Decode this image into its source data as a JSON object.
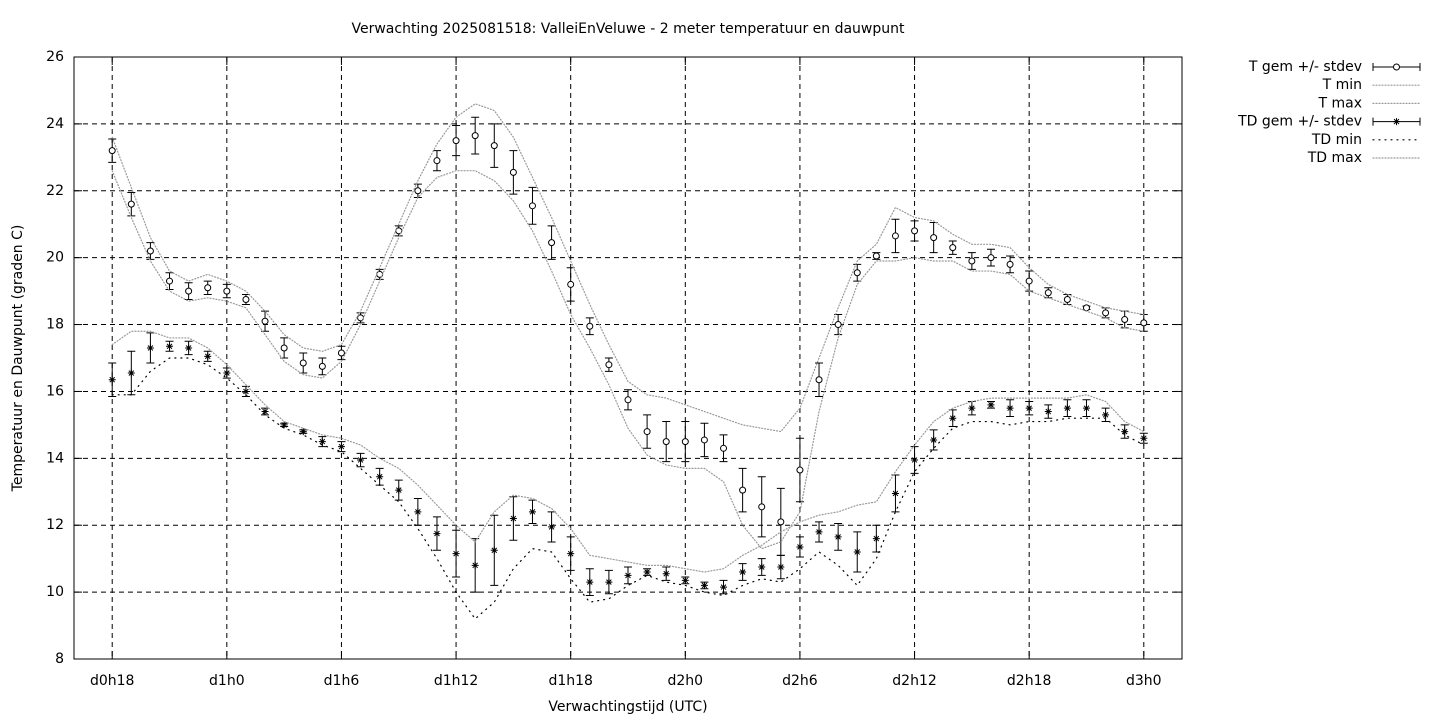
{
  "chart_data": {
    "type": "errorbar-line",
    "title": "Verwachting 2025081518: ValleiEnVeluwe - 2 meter temperatuur en dauwpunt",
    "xlabel": "Verwachtingstijd (UTC)",
    "ylabel": "Temperatuur en Dauwpunt (graden C)",
    "x": [
      18,
      19,
      20,
      21,
      22,
      23,
      24,
      25,
      26,
      27,
      28,
      29,
      30,
      31,
      32,
      33,
      34,
      35,
      36,
      37,
      38,
      39,
      40,
      41,
      42,
      43,
      44,
      45,
      46,
      47,
      48,
      49,
      50,
      51,
      52,
      53,
      54,
      55,
      56,
      57,
      58,
      59,
      60,
      61,
      62,
      63,
      64,
      65,
      66,
      67,
      68,
      69,
      70,
      71,
      72
    ],
    "xlim": [
      16,
      74
    ],
    "xticks": [
      {
        "value": 18,
        "label": "d0h18"
      },
      {
        "value": 24,
        "label": "d1h0"
      },
      {
        "value": 30,
        "label": "d1h6"
      },
      {
        "value": 36,
        "label": "d1h12"
      },
      {
        "value": 42,
        "label": "d1h18"
      },
      {
        "value": 48,
        "label": "d2h0"
      },
      {
        "value": 54,
        "label": "d2h6"
      },
      {
        "value": 60,
        "label": "d2h12"
      },
      {
        "value": 66,
        "label": "d2h18"
      },
      {
        "value": 72,
        "label": "d3h0"
      }
    ],
    "ylim": [
      8,
      26
    ],
    "yticks": [
      8,
      10,
      12,
      14,
      16,
      18,
      20,
      22,
      24,
      26
    ],
    "grid": true,
    "legend": "outside-right",
    "series": [
      {
        "name": "T gem +/- stdev",
        "style": "errorbars",
        "marker": "circle",
        "color": "#000000",
        "values": [
          23.2,
          21.6,
          20.2,
          19.3,
          19.0,
          19.1,
          19.0,
          18.75,
          18.1,
          17.3,
          16.85,
          16.75,
          17.15,
          18.2,
          19.5,
          20.8,
          22.0,
          22.9,
          23.5,
          23.65,
          23.35,
          22.55,
          21.55,
          20.45,
          19.2,
          17.95,
          16.8,
          15.75,
          14.8,
          14.5,
          14.5,
          14.55,
          14.3,
          13.05,
          12.55,
          12.1,
          13.65,
          16.35,
          18.0,
          19.55,
          20.05,
          20.65,
          20.8,
          20.6,
          20.3,
          19.9,
          20.0,
          19.8,
          19.3,
          18.95,
          18.75,
          18.5,
          18.35,
          18.15,
          18.05
        ],
        "errors": [
          0.35,
          0.35,
          0.25,
          0.25,
          0.25,
          0.2,
          0.2,
          0.15,
          0.3,
          0.3,
          0.3,
          0.25,
          0.2,
          0.15,
          0.15,
          0.15,
          0.2,
          0.3,
          0.45,
          0.55,
          0.65,
          0.65,
          0.55,
          0.5,
          0.5,
          0.25,
          0.2,
          0.3,
          0.5,
          0.6,
          0.6,
          0.5,
          0.4,
          0.65,
          0.9,
          1.0,
          0.95,
          0.5,
          0.3,
          0.25,
          0.1,
          0.5,
          0.3,
          0.45,
          0.2,
          0.25,
          0.25,
          0.25,
          0.3,
          0.15,
          0.15,
          0.05,
          0.15,
          0.25,
          0.25
        ]
      },
      {
        "name": "T min",
        "style": "line",
        "dash": "1 2",
        "color": "#999999",
        "values": [
          22.6,
          21.2,
          19.9,
          19.0,
          18.7,
          18.8,
          18.7,
          18.5,
          17.7,
          16.9,
          16.5,
          16.4,
          16.9,
          18.0,
          19.3,
          20.6,
          21.8,
          22.4,
          22.6,
          22.6,
          22.3,
          21.7,
          20.8,
          19.6,
          18.3,
          17.3,
          16.2,
          14.9,
          14.1,
          13.8,
          13.7,
          13.7,
          13.3,
          12.0,
          11.3,
          11.5,
          12.4,
          15.4,
          17.6,
          19.2,
          19.9,
          19.9,
          20.0,
          19.9,
          19.9,
          19.6,
          19.6,
          19.5,
          19.0,
          18.8,
          18.6,
          18.4,
          18.2,
          17.9,
          17.8
        ]
      },
      {
        "name": "T max",
        "style": "line",
        "dash": "1 2",
        "color": "#999999",
        "values": [
          23.6,
          22.1,
          20.6,
          19.6,
          19.3,
          19.5,
          19.3,
          19.0,
          18.4,
          17.7,
          17.3,
          17.2,
          17.4,
          18.4,
          19.7,
          21.0,
          22.3,
          23.4,
          24.2,
          24.6,
          24.4,
          23.6,
          22.4,
          21.2,
          19.9,
          18.6,
          17.4,
          16.3,
          15.9,
          15.8,
          15.6,
          15.4,
          15.2,
          15.0,
          14.9,
          14.8,
          15.5,
          17.0,
          18.5,
          19.9,
          20.4,
          21.5,
          21.2,
          21.1,
          20.7,
          20.4,
          20.4,
          20.3,
          19.7,
          19.2,
          18.9,
          18.7,
          18.5,
          18.4,
          18.3
        ]
      },
      {
        "name": "TD gem +/- stdev",
        "style": "errorbars",
        "marker": "star",
        "color": "#000000",
        "values": [
          16.35,
          16.55,
          17.3,
          17.35,
          17.3,
          17.05,
          16.55,
          16.0,
          15.4,
          15.0,
          14.8,
          14.5,
          14.35,
          13.95,
          13.45,
          13.05,
          12.4,
          11.75,
          11.15,
          10.8,
          11.25,
          12.2,
          12.4,
          11.95,
          11.15,
          10.3,
          10.3,
          10.5,
          10.6,
          10.55,
          10.35,
          10.2,
          10.15,
          10.6,
          10.75,
          10.75,
          11.35,
          11.8,
          11.65,
          11.2,
          11.6,
          12.95,
          13.95,
          14.55,
          15.2,
          15.5,
          15.6,
          15.5,
          15.5,
          15.4,
          15.5,
          15.5,
          15.3,
          14.8,
          14.6
        ],
        "errors": [
          0.5,
          0.65,
          0.45,
          0.15,
          0.2,
          0.15,
          0.15,
          0.15,
          0.1,
          0.05,
          0.05,
          0.15,
          0.15,
          0.2,
          0.25,
          0.3,
          0.4,
          0.5,
          0.7,
          0.8,
          1.05,
          0.65,
          0.35,
          0.45,
          0.5,
          0.4,
          0.35,
          0.25,
          0.1,
          0.2,
          0.1,
          0.1,
          0.2,
          0.25,
          0.25,
          0.35,
          0.3,
          0.3,
          0.4,
          0.6,
          0.4,
          0.55,
          0.4,
          0.3,
          0.25,
          0.2,
          0.1,
          0.25,
          0.2,
          0.2,
          0.25,
          0.25,
          0.2,
          0.2,
          0.15
        ]
      },
      {
        "name": "TD min",
        "style": "line",
        "dash": "1 5",
        "color": "#000000",
        "values": [
          15.9,
          15.9,
          16.6,
          17.0,
          17.0,
          16.8,
          16.4,
          15.9,
          15.3,
          14.9,
          14.7,
          14.4,
          14.2,
          13.7,
          13.2,
          12.7,
          11.9,
          11.0,
          10.0,
          9.2,
          9.7,
          10.7,
          11.3,
          11.2,
          10.4,
          9.7,
          9.8,
          10.2,
          10.5,
          10.3,
          10.2,
          10.0,
          9.9,
          10.2,
          10.4,
          10.3,
          10.7,
          11.2,
          10.8,
          10.2,
          11.0,
          12.4,
          13.6,
          14.3,
          14.9,
          15.1,
          15.1,
          15.0,
          15.1,
          15.1,
          15.2,
          15.2,
          15.2,
          14.7,
          14.4
        ]
      },
      {
        "name": "TD max",
        "style": "line",
        "dash": "1 2",
        "color": "#999999",
        "values": [
          17.4,
          17.8,
          17.8,
          17.6,
          17.6,
          17.3,
          16.8,
          16.2,
          15.6,
          15.1,
          14.9,
          14.7,
          14.6,
          14.4,
          14.0,
          13.7,
          13.2,
          12.6,
          12.0,
          11.5,
          12.4,
          12.9,
          12.8,
          12.5,
          11.9,
          11.1,
          11.0,
          10.9,
          10.8,
          10.8,
          10.7,
          10.6,
          10.7,
          11.1,
          11.4,
          11.8,
          12.1,
          12.3,
          12.4,
          12.6,
          12.7,
          13.6,
          14.4,
          15.1,
          15.5,
          15.7,
          15.8,
          15.8,
          15.8,
          15.8,
          15.8,
          15.9,
          15.7,
          15.1,
          14.8
        ]
      }
    ]
  }
}
